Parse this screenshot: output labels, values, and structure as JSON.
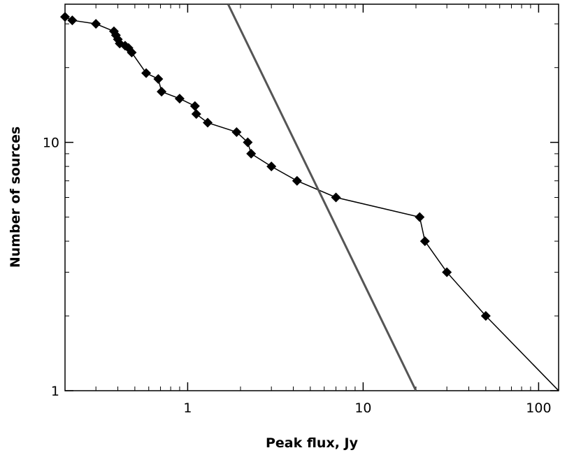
{
  "chart_data": {
    "type": "line",
    "title": "",
    "xlabel": "Peak flux, Jy",
    "ylabel": "Number of sources",
    "xscale": "log",
    "yscale": "log",
    "xlim": [
      0.2,
      130
    ],
    "ylim": [
      1,
      36
    ],
    "grid": false,
    "x_ticks": [
      {
        "value": 1,
        "label": "1"
      },
      {
        "value": 10,
        "label": "10"
      },
      {
        "value": 100,
        "label": "100"
      }
    ],
    "y_ticks": [
      {
        "value": 1,
        "label": "1"
      },
      {
        "value": 10,
        "label": "10"
      }
    ],
    "series": [
      {
        "marker": "diamond",
        "color": "#000000",
        "points": [
          {
            "x": 0.2,
            "y": 32
          },
          {
            "x": 0.22,
            "y": 31
          },
          {
            "x": 0.3,
            "y": 30
          },
          {
            "x": 0.38,
            "y": 28
          },
          {
            "x": 0.39,
            "y": 27
          },
          {
            "x": 0.4,
            "y": 26
          },
          {
            "x": 0.41,
            "y": 25
          },
          {
            "x": 0.44,
            "y": 24.5
          },
          {
            "x": 0.46,
            "y": 24
          },
          {
            "x": 0.48,
            "y": 23
          },
          {
            "x": 0.58,
            "y": 19
          },
          {
            "x": 0.68,
            "y": 18
          },
          {
            "x": 0.71,
            "y": 16
          },
          {
            "x": 0.9,
            "y": 15
          },
          {
            "x": 1.1,
            "y": 14
          },
          {
            "x": 1.12,
            "y": 13
          },
          {
            "x": 1.3,
            "y": 12
          },
          {
            "x": 1.9,
            "y": 11
          },
          {
            "x": 2.2,
            "y": 10
          },
          {
            "x": 2.3,
            "y": 9
          },
          {
            "x": 3.0,
            "y": 8
          },
          {
            "x": 4.2,
            "y": 7
          },
          {
            "x": 7.0,
            "y": 6
          },
          {
            "x": 21.0,
            "y": 5
          },
          {
            "x": 22.5,
            "y": 4
          },
          {
            "x": 30.0,
            "y": 3
          },
          {
            "x": 50.0,
            "y": 2
          }
        ],
        "line_end": {
          "x": 130,
          "y": 1
        }
      },
      {
        "marker": "none",
        "color": "#555555",
        "points": [
          {
            "x": 1.7,
            "y": 36
          },
          {
            "x": 20,
            "y": 1
          }
        ]
      }
    ]
  }
}
